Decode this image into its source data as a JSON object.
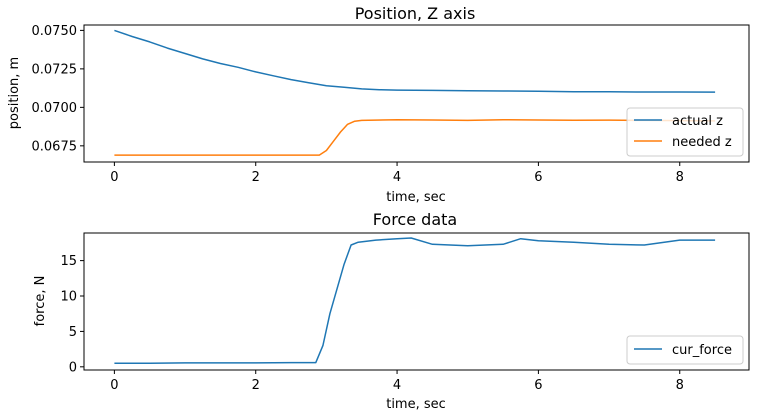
{
  "chart_data": [
    {
      "type": "line",
      "title": "Position, Z axis",
      "xlabel": "time, sec",
      "ylabel": "position, m",
      "xlim": [
        -0.43,
        8.98
      ],
      "ylim": [
        0.06645,
        0.07535
      ],
      "xticks": [
        0,
        2,
        4,
        6,
        8
      ],
      "xtick_labels": [
        "0",
        "2",
        "4",
        "6",
        "8"
      ],
      "yticks": [
        0.0675,
        0.07,
        0.0725,
        0.075
      ],
      "ytick_labels": [
        "0.0675",
        "0.0700",
        "0.0725",
        "0.0750"
      ],
      "grid": false,
      "legend": "lower-right",
      "series": [
        {
          "name": "actual z",
          "color": "#1f77b4",
          "x": [
            0,
            0.25,
            0.5,
            0.75,
            1,
            1.25,
            1.5,
            1.75,
            2,
            2.25,
            2.5,
            2.75,
            3,
            3.25,
            3.5,
            3.75,
            4,
            4.5,
            5,
            5.5,
            6,
            6.5,
            7,
            7.5,
            8,
            8.5
          ],
          "y": [
            0.075,
            0.0746,
            0.07425,
            0.07385,
            0.0735,
            0.07315,
            0.07285,
            0.0726,
            0.0723,
            0.07205,
            0.0718,
            0.0716,
            0.0714,
            0.0713,
            0.0712,
            0.07115,
            0.07112,
            0.0711,
            0.07108,
            0.07106,
            0.07104,
            0.07102,
            0.07101,
            0.071,
            0.071,
            0.07099
          ]
        },
        {
          "name": "needed z",
          "color": "#ff7f0e",
          "x": [
            0,
            0.5,
            1,
            1.5,
            2,
            2.5,
            2.9,
            3.0,
            3.1,
            3.2,
            3.3,
            3.4,
            3.5,
            4,
            4.5,
            5,
            5.5,
            6,
            6.5,
            7,
            7.5,
            8,
            8.5
          ],
          "y": [
            0.0669,
            0.0669,
            0.0669,
            0.0669,
            0.0669,
            0.0669,
            0.0669,
            0.0672,
            0.0678,
            0.0684,
            0.0689,
            0.0691,
            0.06915,
            0.0692,
            0.06918,
            0.06915,
            0.0692,
            0.06918,
            0.06916,
            0.06917,
            0.06915,
            0.06914,
            0.06912
          ]
        }
      ]
    },
    {
      "type": "line",
      "title": "Force data",
      "xlabel": "time, sec",
      "ylabel": "force, N",
      "xlim": [
        -0.43,
        8.98
      ],
      "ylim": [
        -0.45,
        18.9
      ],
      "xticks": [
        0,
        2,
        4,
        6,
        8
      ],
      "xtick_labels": [
        "0",
        "2",
        "4",
        "6",
        "8"
      ],
      "yticks": [
        0,
        5,
        10,
        15
      ],
      "ytick_labels": [
        "0",
        "5",
        "10",
        "15"
      ],
      "grid": false,
      "legend": "lower-right",
      "series": [
        {
          "name": "cur_force",
          "color": "#1f77b4",
          "x": [
            0,
            0.5,
            1,
            1.5,
            2,
            2.5,
            2.85,
            2.95,
            3.05,
            3.15,
            3.25,
            3.35,
            3.45,
            3.7,
            4.0,
            4.2,
            4.5,
            5.0,
            5.5,
            5.75,
            6.0,
            6.5,
            7.0,
            7.5,
            8.0,
            8.5
          ],
          "y": [
            0.5,
            0.5,
            0.55,
            0.55,
            0.55,
            0.6,
            0.6,
            3.0,
            7.5,
            11.0,
            14.5,
            17.2,
            17.6,
            17.9,
            18.1,
            18.2,
            17.3,
            17.1,
            17.3,
            18.1,
            17.8,
            17.6,
            17.3,
            17.2,
            17.9,
            17.9
          ]
        }
      ]
    }
  ]
}
